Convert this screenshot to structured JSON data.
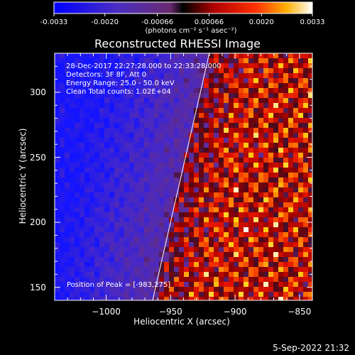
{
  "colorbar": {
    "ticks": [
      "-0.0033",
      "-0.0020",
      "-0.00066",
      "0.00066",
      "0.0020",
      "0.0033"
    ],
    "tick_values": [
      -0.0033,
      -0.002,
      -0.00066,
      0.00066,
      0.002,
      0.0033
    ],
    "range": [
      -0.0033,
      0.0033
    ],
    "unit_label": "(photons cm⁻² s⁻¹ asec⁻²)"
  },
  "chart_data": {
    "type": "heatmap",
    "title": "Reconstructed RHESSI Image",
    "xlabel": "Heliocentric X (arcsec)",
    "ylabel": "Heliocentric Y (arcsec)",
    "xlim": [
      -1040,
      -840
    ],
    "ylim": [
      140,
      330
    ],
    "x_ticks": [
      -1000,
      -950,
      -900,
      -850
    ],
    "x_tick_labels": [
      "−1000",
      "−950",
      "−900",
      "−850"
    ],
    "y_ticks": [
      150,
      200,
      250,
      300
    ],
    "y_tick_labels": [
      "150",
      "200",
      "250",
      "300"
    ],
    "limb_line": {
      "x": [
        -964,
        -920
      ],
      "y": [
        140,
        330
      ]
    },
    "colors": {
      "low": "#0000ff",
      "mid_low": "#5a2ca0",
      "mid": "#8b0000",
      "mid_high": "#ff2000",
      "high": "#ffffff"
    },
    "annotations": {
      "time_range": "28-Dec-2017 22:27:28.000 to 22:33:28.000",
      "detectors": "Detectors: 3F 8F, Att 0",
      "energy": "Energy Range: 25.0 - 50.0 keV",
      "method": "Clean    Total counts: 1.02E+04",
      "peak": "Position of Peak = [-983,275]"
    }
  },
  "footer": {
    "timestamp": "5-Sep-2022 21:32"
  }
}
